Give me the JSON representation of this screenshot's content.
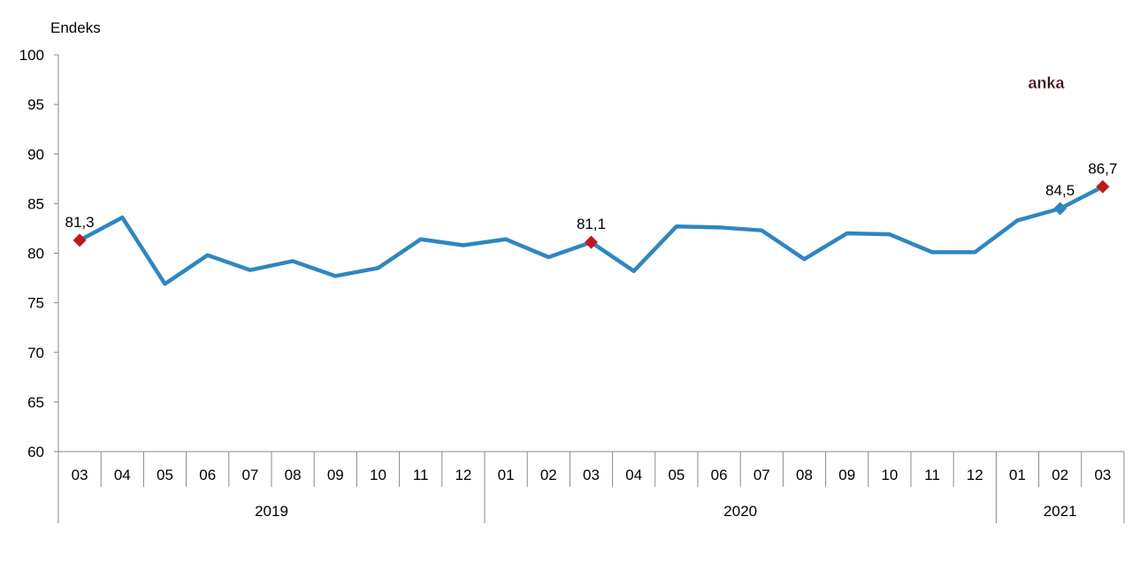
{
  "chart_data": {
    "type": "line",
    "ylabel": "Endeks",
    "ylim": [
      60,
      100
    ],
    "yticks": [
      60,
      65,
      70,
      75,
      80,
      85,
      90,
      95,
      100
    ],
    "categories": [
      "03",
      "04",
      "05",
      "06",
      "07",
      "08",
      "09",
      "10",
      "11",
      "12",
      "01",
      "02",
      "03",
      "04",
      "05",
      "06",
      "07",
      "08",
      "09",
      "10",
      "11",
      "12",
      "01",
      "02",
      "03"
    ],
    "years": [
      {
        "label": "2019",
        "count": 10
      },
      {
        "label": "2020",
        "count": 12
      },
      {
        "label": "2021",
        "count": 3
      }
    ],
    "series": [
      {
        "name": "Endeks",
        "color": "#2E86C1",
        "values": [
          81.3,
          83.6,
          76.9,
          79.8,
          78.3,
          79.2,
          77.7,
          78.5,
          81.4,
          80.8,
          81.4,
          79.6,
          81.1,
          78.2,
          82.7,
          82.6,
          82.3,
          79.4,
          82.0,
          81.9,
          80.1,
          80.1,
          83.3,
          84.5,
          86.7
        ]
      }
    ],
    "annotations": [
      {
        "index": 0,
        "label": "81,3",
        "marker_color": "#C0161E"
      },
      {
        "index": 12,
        "label": "81,1",
        "marker_color": "#C0161E"
      },
      {
        "index": 23,
        "label": "84,5",
        "marker_color": "#2E86C1"
      },
      {
        "index": 24,
        "label": "86,7",
        "marker_color": "#C0161E"
      }
    ],
    "grid": false
  },
  "watermark": "anka"
}
